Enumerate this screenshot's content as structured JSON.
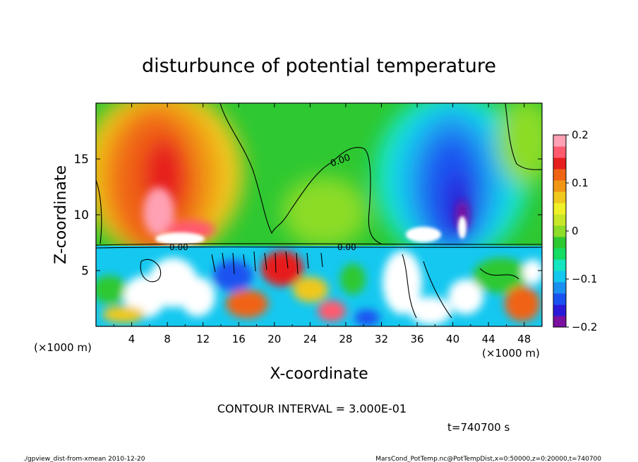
{
  "chart_data": {
    "type": "heatmap",
    "title": "disturbunce of potential temperature",
    "xlabel": "X-coordinate",
    "ylabel": "Z-coordinate",
    "x_unit_left": "(×1000 m)",
    "x_unit_right": "(×1000 m)",
    "xlim": [
      0,
      50
    ],
    "ylim": [
      0,
      20
    ],
    "x_ticks": [
      "4",
      "8",
      "12",
      "16",
      "20",
      "24",
      "28",
      "32",
      "36",
      "40",
      "44",
      "48"
    ],
    "x_tick_values": [
      4,
      8,
      12,
      16,
      20,
      24,
      28,
      32,
      36,
      40,
      44,
      48
    ],
    "y_ticks": [
      "5",
      "10",
      "15"
    ],
    "y_tick_values": [
      5,
      10,
      15
    ],
    "colorbar": {
      "range": [
        -0.2,
        0.2
      ],
      "tick_labels": [
        "0.2",
        "0.1",
        "0",
        "−0.1",
        "−0.2"
      ],
      "tick_values": [
        0.2,
        0.1,
        0,
        -0.1,
        -0.2
      ],
      "colors": [
        "#7a0fa0",
        "#2a1ad8",
        "#1a52f0",
        "#1a90f0",
        "#14c8f0",
        "#14e6c0",
        "#14dc64",
        "#2ec832",
        "#8cdc28",
        "#c8e628",
        "#f0f028",
        "#f0c81e",
        "#f09614",
        "#f06414",
        "#e61e1e",
        "#ff5a6e",
        "#ffa0b4"
      ]
    },
    "contour_labels": [
      "0.00",
      "0.00",
      "0.00"
    ],
    "annotation": "CONTOUR INTERVAL = 3.000E-01",
    "time_label": "t=740700 s"
  },
  "footer": {
    "left": "./gpview_dist-from-xmean  2010-12-20",
    "right": "MarsCond_PotTemp.nc@PotTempDist,x=0:50000,z=0:20000,t=740700"
  }
}
